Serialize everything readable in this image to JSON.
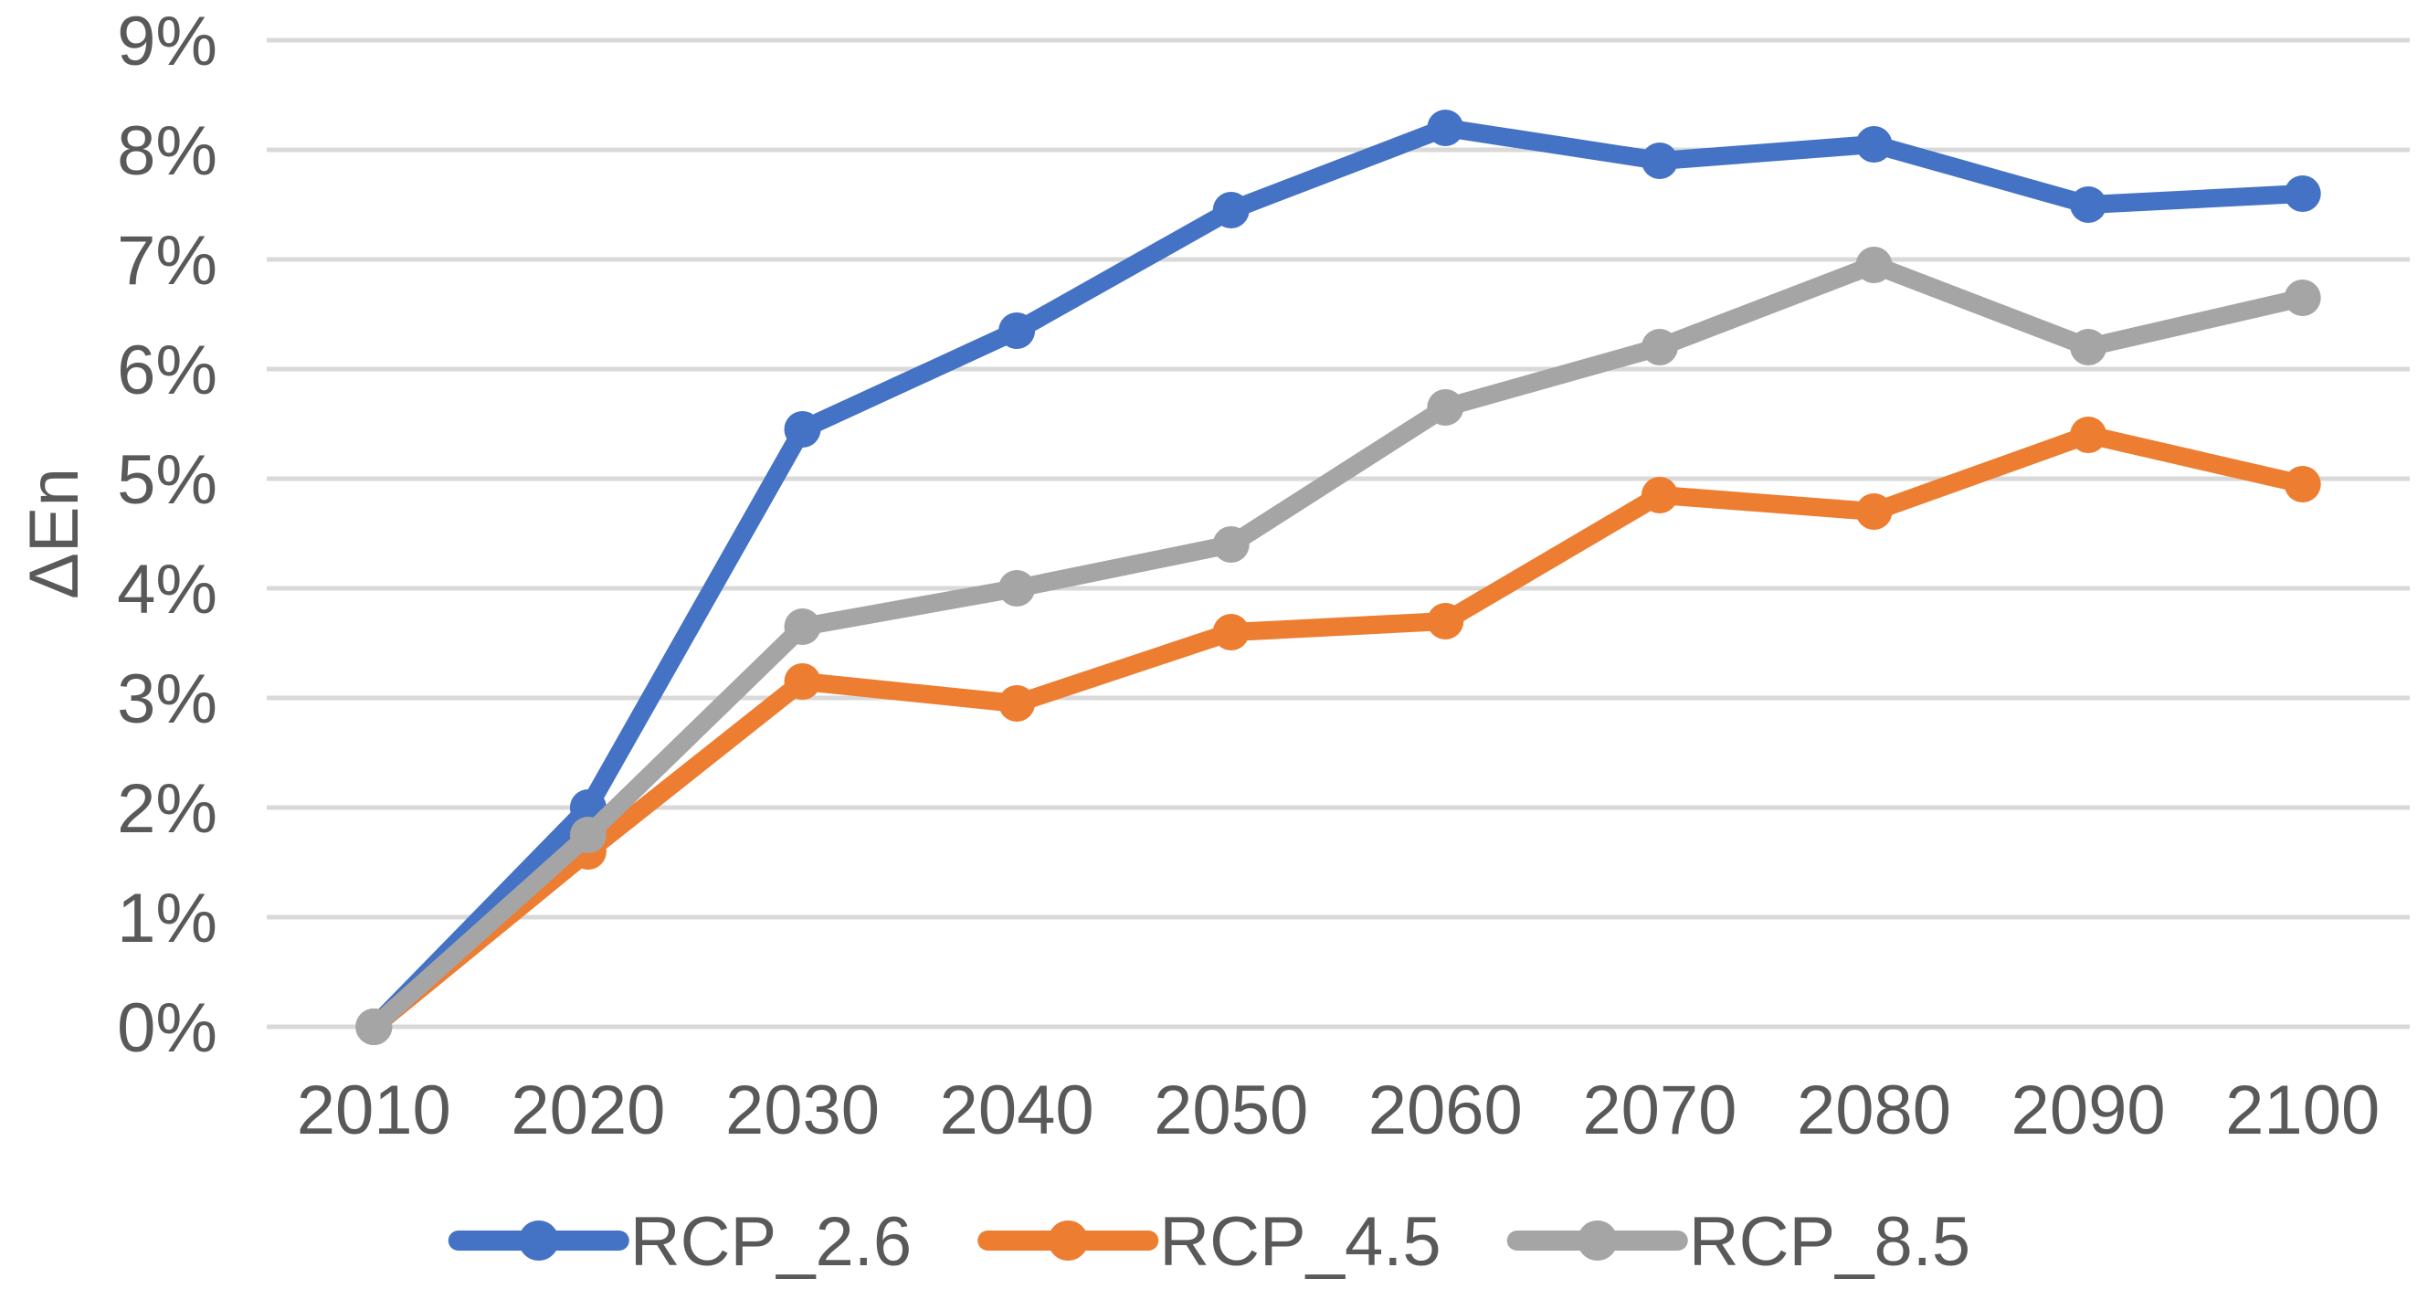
{
  "chart_data": {
    "type": "line",
    "title": "",
    "xlabel": "",
    "ylabel": "ΔEn",
    "categories": [
      "2010",
      "2020",
      "2030",
      "2040",
      "2050",
      "2060",
      "2070",
      "2080",
      "2090",
      "2100"
    ],
    "series": [
      {
        "name": "RCP_2.6",
        "color": "#4472C4",
        "values": [
          0,
          2.0,
          5.45,
          6.35,
          7.45,
          8.2,
          7.9,
          8.05,
          7.5,
          7.6
        ]
      },
      {
        "name": "RCP_4.5",
        "color": "#ED7D31",
        "values": [
          0,
          1.6,
          3.15,
          2.95,
          3.6,
          3.7,
          4.85,
          4.7,
          5.4,
          4.95
        ]
      },
      {
        "name": "RCP_8.5",
        "color": "#A5A5A5",
        "values": [
          0,
          1.75,
          3.65,
          4.0,
          4.4,
          5.65,
          6.2,
          6.95,
          6.2,
          6.65
        ]
      }
    ],
    "yticks": [
      "0%",
      "1%",
      "2%",
      "3%",
      "4%",
      "5%",
      "6%",
      "7%",
      "8%",
      "9%"
    ],
    "ylim": [
      0,
      9
    ],
    "grid": "horizontal",
    "legend_position": "bottom",
    "marker": "circle"
  },
  "colors": {
    "background": "#FFFFFF",
    "gridline": "#D9D9D9",
    "axis_text": "#595959"
  }
}
